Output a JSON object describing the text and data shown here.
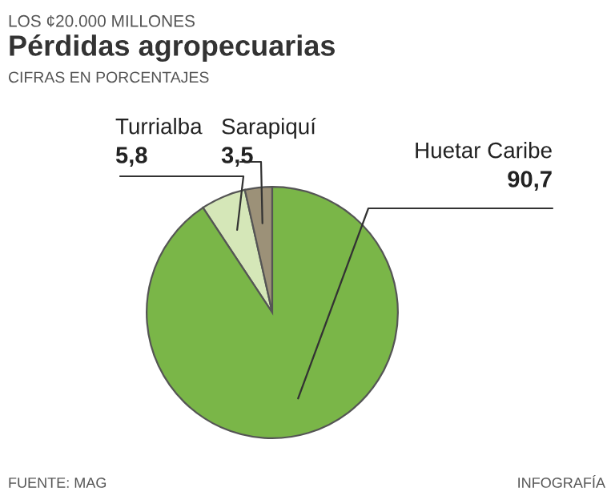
{
  "chart_data": {
    "type": "pie",
    "title": "Pérdidas agropecuarias",
    "subtitle": "CIFRAS EN PORCENTAJES",
    "annotations": [
      "LOS ¢20.000 MILLONES",
      "FUENTE: MAG",
      "INFOGRAFÍA"
    ],
    "categories": [
      "Turrialba",
      "Sarapiquí",
      "Huetar Caribe"
    ],
    "values": [
      5.8,
      3.5,
      90.7
    ],
    "value_labels": [
      "5,8",
      "3,5",
      "90,7"
    ],
    "colors": [
      "#d5e7b8",
      "#9c9178",
      "#7ab648"
    ]
  }
}
